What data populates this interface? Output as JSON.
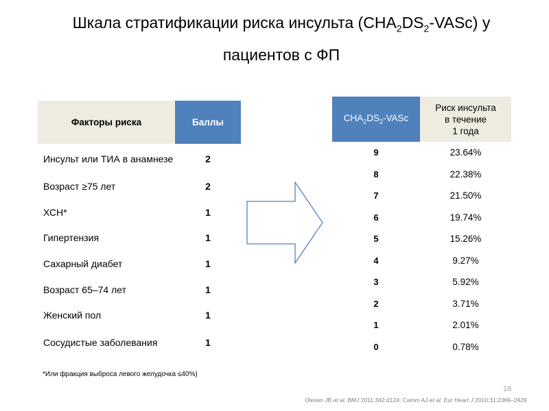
{
  "title": {
    "line1_pre": "Шкала стратификации риска инсульта (CHA",
    "sub1": "2",
    "mid": "DS",
    "sub2": "2",
    "line1_post": "-VASc) у",
    "line2": "пациентов с ФП"
  },
  "left_table": {
    "header_factor": "Факторы риска",
    "header_points": "Баллы",
    "rows": [
      {
        "factor": "Инсульт или ТИА в анамнезе",
        "points": "2"
      },
      {
        "factor": "Возраст ≥75 лет",
        "points": "2"
      },
      {
        "factor": "ХСН*",
        "points": "1"
      },
      {
        "factor": "Гипертензия",
        "points": "1"
      },
      {
        "factor": "Сахарный диабет",
        "points": "1"
      },
      {
        "factor": "Возраст 65–74 лет",
        "points": "1"
      },
      {
        "factor": "Женский пол",
        "points": "1"
      },
      {
        "factor": "Сосудистые заболевания",
        "points": "1"
      }
    ]
  },
  "footnote": "*Или фракция выброса левого желудочка ≤40%)",
  "right_table": {
    "header_score_pre": "CHA",
    "header_score_sub1": "2",
    "header_score_mid": "DS",
    "header_score_sub2": "2",
    "header_score_post": "-VASc",
    "header_risk_line1": "Риск инсульта",
    "header_risk_line2": "в течение",
    "header_risk_line3": "1 года",
    "rows": [
      {
        "score": "9",
        "risk": "23.64%"
      },
      {
        "score": "8",
        "risk": "22.38%"
      },
      {
        "score": "7",
        "risk": "21.50%"
      },
      {
        "score": "6",
        "risk": "19.74%"
      },
      {
        "score": "5",
        "risk": "15.26%"
      },
      {
        "score": "4",
        "risk": "9.27%"
      },
      {
        "score": "3",
        "risk": "5.92%"
      },
      {
        "score": "2",
        "risk": "3.71%"
      },
      {
        "score": "1",
        "risk": "2.01%"
      },
      {
        "score": "0",
        "risk": "0.78%"
      }
    ]
  },
  "page_number": "18",
  "reference": {
    "a1": "Olesen JB ",
    "a1_et": "et al",
    "a1_journal": ". BMJ ",
    "a1_cite": "2011;342:d124; Camm AJ ",
    "a2_et": "et al",
    "a2_journal": ". Eur Heart J ",
    "a2_cite": "2010;31:2369–2429"
  },
  "colors": {
    "header_blue": "#4f81bd",
    "header_beige": "#eeece1"
  }
}
